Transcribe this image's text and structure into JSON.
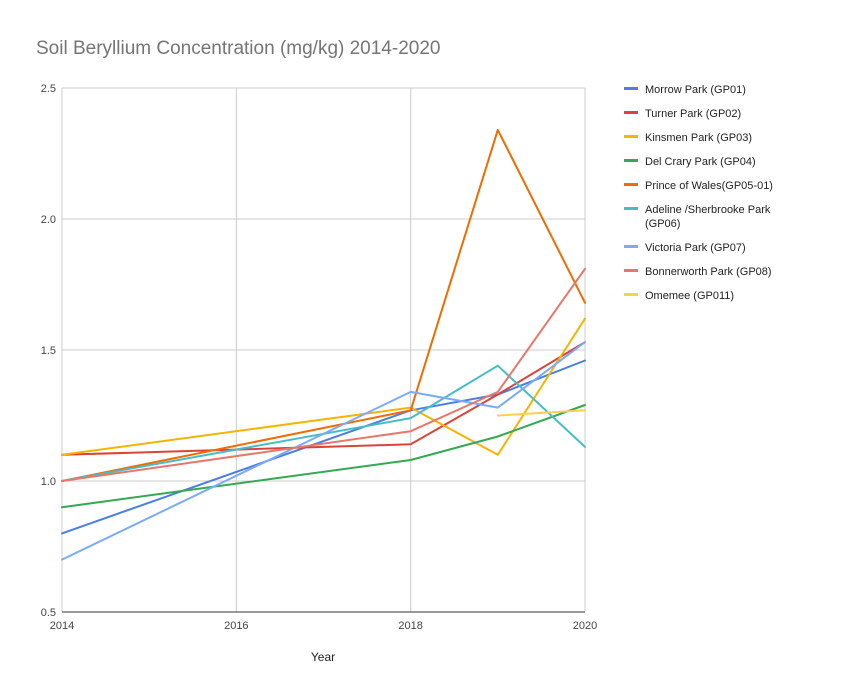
{
  "chart_data": {
    "type": "line",
    "title": "Soil Beryllium Concentration (mg/kg) 2014-2020",
    "xlabel": "Year",
    "ylabel": "",
    "xlim": [
      2014,
      2020
    ],
    "ylim": [
      0.5,
      2.5
    ],
    "x_ticks": [
      "2014",
      "2016",
      "2018",
      "2020"
    ],
    "y_ticks": [
      "0.5",
      "1.0",
      "1.5",
      "2.0",
      "2.5"
    ],
    "grid": true,
    "legend_position": "right",
    "series": [
      {
        "name": "Morrow Park (GP01)",
        "color": "#4a7fe0",
        "points": [
          [
            2014,
            0.8
          ],
          [
            2018,
            1.27
          ],
          [
            2019,
            1.33
          ],
          [
            2020,
            1.46
          ]
        ]
      },
      {
        "name": "Turner Park (GP02)",
        "color": "#d9443a",
        "points": [
          [
            2014,
            1.1
          ],
          [
            2018,
            1.14
          ],
          [
            2019,
            1.33
          ],
          [
            2020,
            1.53
          ]
        ]
      },
      {
        "name": "Kinsmen Park (GP03)",
        "color": "#f4b400",
        "points": [
          [
            2014,
            1.1
          ],
          [
            2018,
            1.28
          ],
          [
            2019,
            1.1
          ],
          [
            2020,
            1.62
          ]
        ]
      },
      {
        "name": "Del Crary Park (GP04)",
        "color": "#34a853",
        "points": [
          [
            2014,
            0.9
          ],
          [
            2018,
            1.08
          ],
          [
            2019,
            1.17
          ],
          [
            2020,
            1.29
          ]
        ]
      },
      {
        "name": "Prince of Wales(GP05-01)",
        "color": "#f06b00",
        "points": [
          [
            2014,
            1.0
          ],
          [
            2018,
            1.27
          ],
          [
            2019,
            2.34
          ],
          [
            2020,
            1.68
          ]
        ]
      },
      {
        "name": "Adeline /Sherbrooke Park (GP06)",
        "color": "#46bdc6",
        "points": [
          [
            2014,
            1.0
          ],
          [
            2018,
            1.24
          ],
          [
            2019,
            1.44
          ],
          [
            2020,
            1.13
          ]
        ]
      },
      {
        "name": "Victoria Park (GP07)",
        "color": "#7baaf7",
        "points": [
          [
            2014,
            0.7
          ],
          [
            2018,
            1.34
          ],
          [
            2019,
            1.28
          ],
          [
            2020,
            1.53
          ]
        ]
      },
      {
        "name": "Bonnerworth Park (GP08)",
        "color": "#e8776b",
        "points": [
          [
            2014,
            1.0
          ],
          [
            2018,
            1.19
          ],
          [
            2019,
            1.34
          ],
          [
            2020,
            1.81
          ]
        ]
      },
      {
        "name": "Omemee (GP011)",
        "color": "#fcd04f",
        "points": [
          [
            2019,
            1.25
          ],
          [
            2020,
            1.27
          ]
        ]
      }
    ]
  }
}
